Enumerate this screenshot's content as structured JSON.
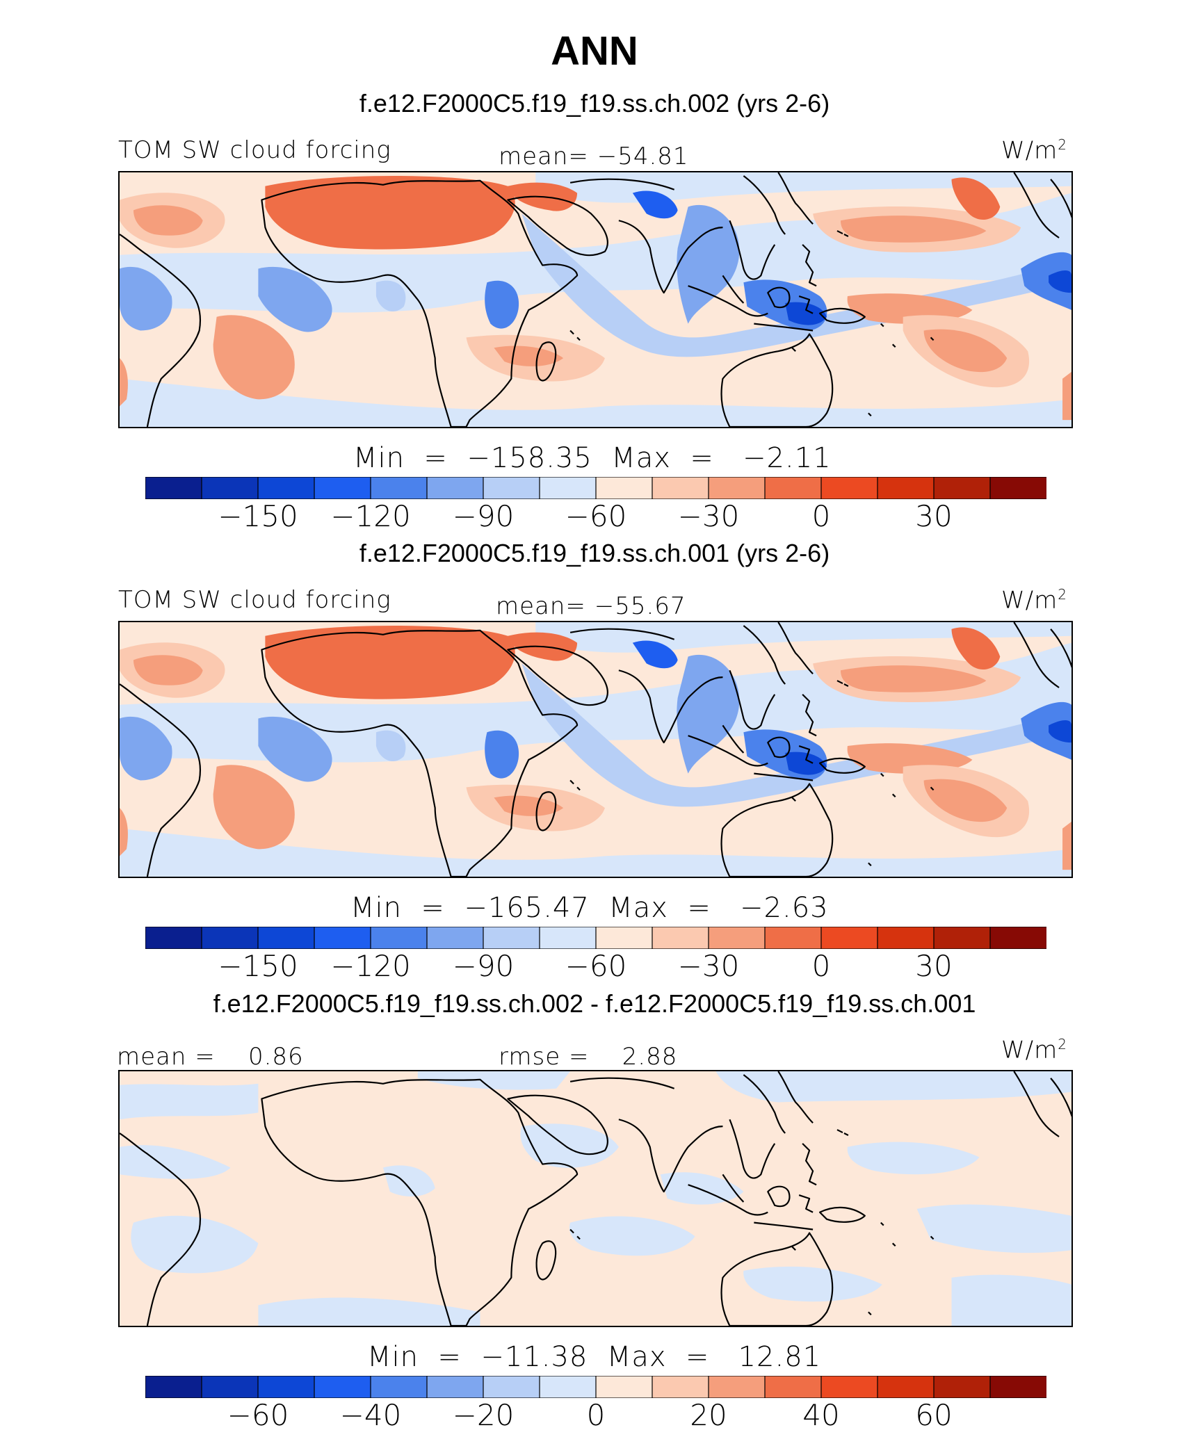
{
  "title": "ANN",
  "panels": [
    {
      "subtitle": "f.e12.F2000C5.f19_f19.ss.ch.002 (yrs 2-6)",
      "left_label": "TOM SW cloud forcing",
      "center_label": "mean= −54.81",
      "units": "W/m",
      "units_sup": "2",
      "minmax": "Min  =  −158.35  Max  =   −2.11",
      "colorbar_ticks": [
        "−150",
        "−120",
        "−90",
        "−60",
        "−30",
        "0",
        "30"
      ]
    },
    {
      "subtitle": "f.e12.F2000C5.f19_f19.ss.ch.001 (yrs 2-6)",
      "left_label": "TOM SW cloud forcing",
      "center_label": "mean= −55.67",
      "units": "W/m",
      "units_sup": "2",
      "minmax": "Min  =  −165.47  Max  =   −2.63",
      "colorbar_ticks": [
        "−150",
        "−120",
        "−90",
        "−60",
        "−30",
        "0",
        "30"
      ]
    },
    {
      "subtitle": "f.e12.F2000C5.f19_f19.ss.ch.002 - f.e12.F2000C5.f19_f19.ss.ch.001",
      "left_label": "mean =    0.86",
      "center_label": "rmse =    2.88",
      "units": "W/m",
      "units_sup": "2",
      "minmax": "Min  =  −11.38  Max  =   12.81",
      "colorbar_ticks": [
        "−60",
        "−40",
        "−20",
        "0",
        "20",
        "40",
        "60"
      ]
    }
  ],
  "colors": {
    "colormap": [
      "#0a1f8f",
      "#0b35b8",
      "#0d47d6",
      "#1e5ef0",
      "#4b82ec",
      "#7ea6ef",
      "#b7cff6",
      "#d7e6fa",
      "#fde8d9",
      "#fbc9b0",
      "#f59e7c",
      "#ef6e47",
      "#ec4a22",
      "#d6330e",
      "#b02108",
      "#870a05"
    ]
  },
  "chart_data": [
    {
      "type": "heatmap",
      "title": "f.e12.F2000C5.f19_f19.ss.ch.002 (yrs 2-6)",
      "variable": "TOM SW cloud forcing",
      "units": "W/m2",
      "mean": -54.81,
      "min": -158.35,
      "max": -2.11,
      "colorbar_levels": [
        -150,
        -120,
        -90,
        -60,
        -30,
        0,
        30
      ],
      "colorbar_tick_labels": [
        "−150",
        "−120",
        "−90",
        "−60",
        "−30",
        "0",
        "30"
      ],
      "colorbar_colors": 16
    },
    {
      "type": "heatmap",
      "title": "f.e12.F2000C5.f19_f19.ss.ch.001 (yrs 2-6)",
      "variable": "TOM SW cloud forcing",
      "units": "W/m2",
      "mean": -55.67,
      "min": -165.47,
      "max": -2.63,
      "colorbar_levels": [
        -150,
        -120,
        -90,
        -60,
        -30,
        0,
        30
      ],
      "colorbar_tick_labels": [
        "−150",
        "−120",
        "−90",
        "−60",
        "−30",
        "0",
        "30"
      ],
      "colorbar_colors": 16
    },
    {
      "type": "heatmap",
      "title": "f.e12.F2000C5.f19_f19.ss.ch.002 - f.e12.F2000C5.f19_f19.ss.ch.001",
      "units": "W/m2",
      "mean": 0.86,
      "rmse": 2.88,
      "min": -11.38,
      "max": 12.81,
      "colorbar_levels": [
        -60,
        -40,
        -20,
        0,
        20,
        40,
        60
      ],
      "colorbar_tick_labels": [
        "−60",
        "−40",
        "−20",
        "0",
        "20",
        "40",
        "60"
      ],
      "colorbar_colors": 16
    }
  ]
}
